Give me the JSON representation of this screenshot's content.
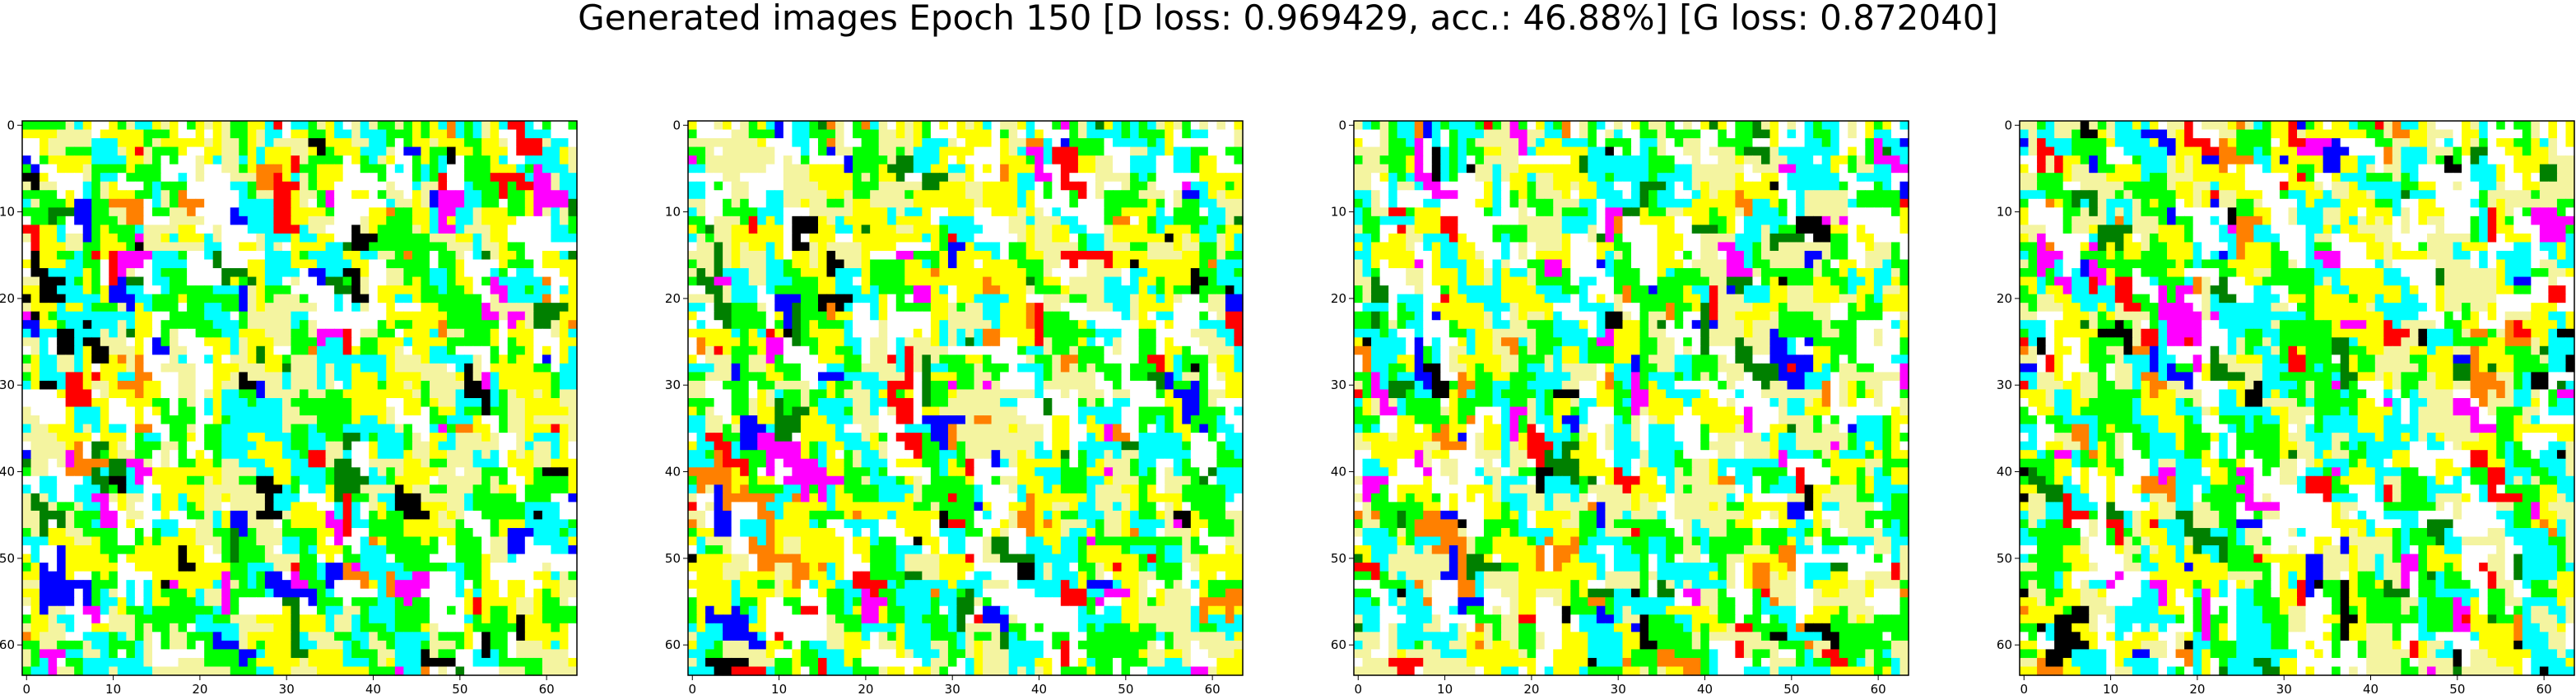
{
  "figure": {
    "title": "Generated images Epoch 150 [D loss: 0.969429, acc.: 46.88%] [G loss: 0.872040]"
  },
  "chart_data": [
    {
      "type": "heatmap",
      "content": "generated RGB image sample 1 (64x64 pixels, colormap of yellow/white/green/cyan with magenta/blue/red spots)",
      "grid_size": [
        64,
        64
      ],
      "xticks": [
        0,
        10,
        20,
        30,
        40,
        50,
        60
      ],
      "yticks": [
        0,
        10,
        20,
        30,
        40,
        50,
        60
      ],
      "xlim": [
        -0.5,
        63.5
      ],
      "ylim": [
        63.5,
        -0.5
      ],
      "seed": 11
    },
    {
      "type": "heatmap",
      "content": "generated RGB image sample 2 (64x64 pixels)",
      "grid_size": [
        64,
        64
      ],
      "xticks": [
        0,
        10,
        20,
        30,
        40,
        50,
        60
      ],
      "yticks": [
        0,
        10,
        20,
        30,
        40,
        50,
        60
      ],
      "xlim": [
        -0.5,
        63.5
      ],
      "ylim": [
        63.5,
        -0.5
      ],
      "seed": 23
    },
    {
      "type": "heatmap",
      "content": "generated RGB image sample 3 (64x64 pixels)",
      "grid_size": [
        64,
        64
      ],
      "xticks": [
        0,
        10,
        20,
        30,
        40,
        50,
        60
      ],
      "yticks": [
        0,
        10,
        20,
        30,
        40,
        50,
        60
      ],
      "xlim": [
        -0.5,
        63.5
      ],
      "ylim": [
        63.5,
        -0.5
      ],
      "seed": 37
    },
    {
      "type": "heatmap",
      "content": "generated RGB image sample 4 (64x64 pixels)",
      "grid_size": [
        64,
        64
      ],
      "xticks": [
        0,
        10,
        20,
        30,
        40,
        50,
        60
      ],
      "yticks": [
        0,
        10,
        20,
        30,
        40,
        50,
        60
      ],
      "xlim": [
        -0.5,
        63.5
      ],
      "ylim": [
        63.5,
        -0.5
      ],
      "seed": 53
    }
  ],
  "palette": {
    "dominant": [
      "#ffff00",
      "#ffffff",
      "#00ff00",
      "#00ffff",
      "#f4f4a0"
    ],
    "accents": [
      "#ff00ff",
      "#0000ff",
      "#ff0000",
      "#000000",
      "#008000",
      "#ff8000"
    ]
  }
}
